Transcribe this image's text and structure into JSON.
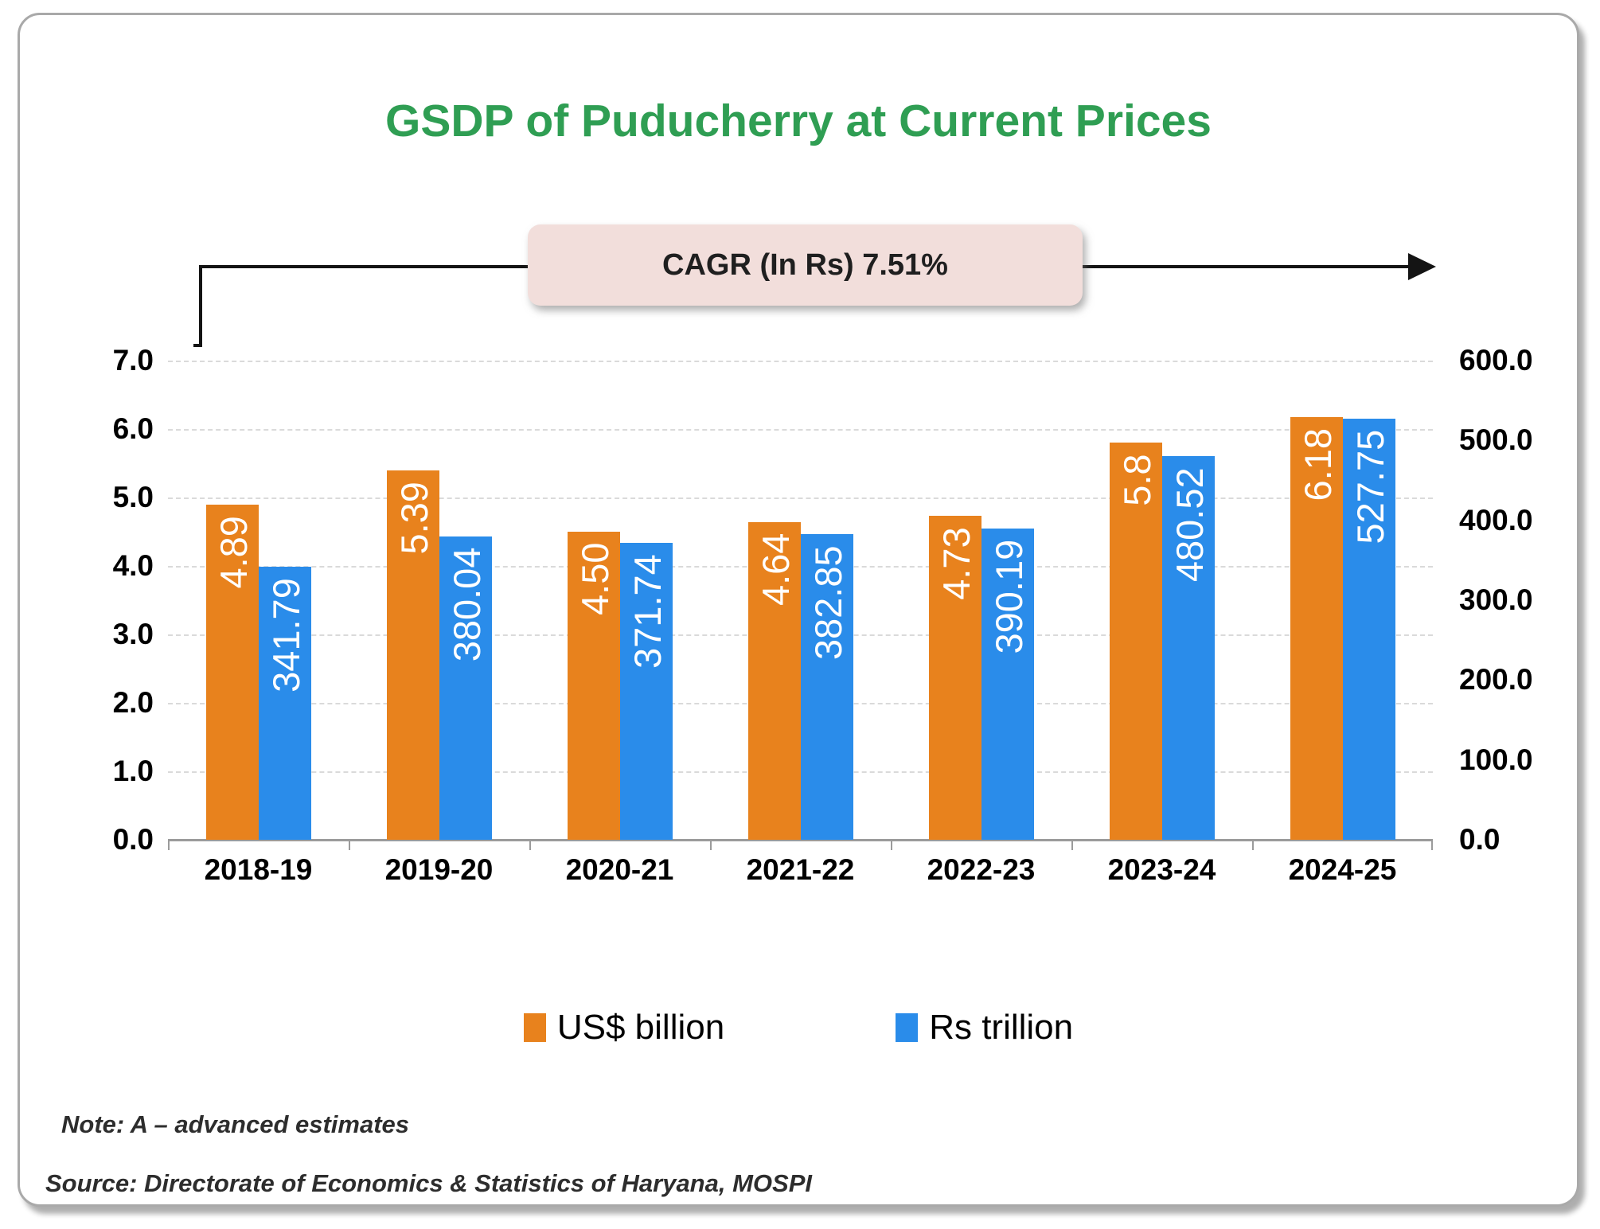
{
  "title": "GSDP of Puducherry at Current Prices",
  "annotation": {
    "label": "CAGR (In Rs) 7.51%"
  },
  "chart_data": {
    "type": "bar",
    "title": "GSDP of Puducherry at Current Prices",
    "categories": [
      "2018-19",
      "2019-20",
      "2020-21",
      "2021-22",
      "2022-23",
      "2023-24",
      "2024-25"
    ],
    "series": [
      {
        "name": "US$ billion",
        "axis": "left",
        "color": "#E8821D",
        "values": [
          4.89,
          5.39,
          4.5,
          4.64,
          4.73,
          5.8,
          6.18
        ],
        "value_labels": [
          "4.89",
          "5.39",
          "4.50",
          "4.64",
          "4.73",
          "5.8",
          "6.18"
        ]
      },
      {
        "name": "Rs trillion",
        "axis": "right",
        "color": "#2A8CEA",
        "values": [
          341.79,
          380.04,
          371.74,
          382.85,
          390.19,
          480.52,
          527.75
        ],
        "value_labels": [
          "341.79",
          "380.04",
          "371.74",
          "382.85",
          "390.19",
          "480.52",
          "527.75"
        ]
      }
    ],
    "left_axis": {
      "min": 0,
      "max": 7,
      "tick_labels": [
        "0.0",
        "1.0",
        "2.0",
        "3.0",
        "4.0",
        "5.0",
        "6.0",
        "7.0"
      ]
    },
    "right_axis": {
      "min": 0,
      "max": 600,
      "tick_labels": [
        "0.0",
        "100.0",
        "200.0",
        "300.0",
        "400.0",
        "500.0",
        "600.0"
      ]
    },
    "grid": true,
    "legend_position": "bottom",
    "annotation": "CAGR (In Rs) 7.51%"
  },
  "legend": [
    {
      "label": "US$ billion",
      "color": "#E8821D"
    },
    {
      "label": "Rs trillion",
      "color": "#2A8CEA"
    }
  ],
  "notes": {
    "note": "Note: A – advanced estimates",
    "source": "Source: Directorate of Economics & Statistics of Haryana, MOSPI"
  },
  "colors": {
    "title_green": "#2F9E53",
    "orange": "#E8821D",
    "blue": "#2A8CEA",
    "annotation_bg": "#F2DEDB",
    "grid": "#DADADA",
    "axis_line": "#9B9B9B",
    "bar_label_text": "#FFFFFF",
    "arrow": "#141414"
  }
}
